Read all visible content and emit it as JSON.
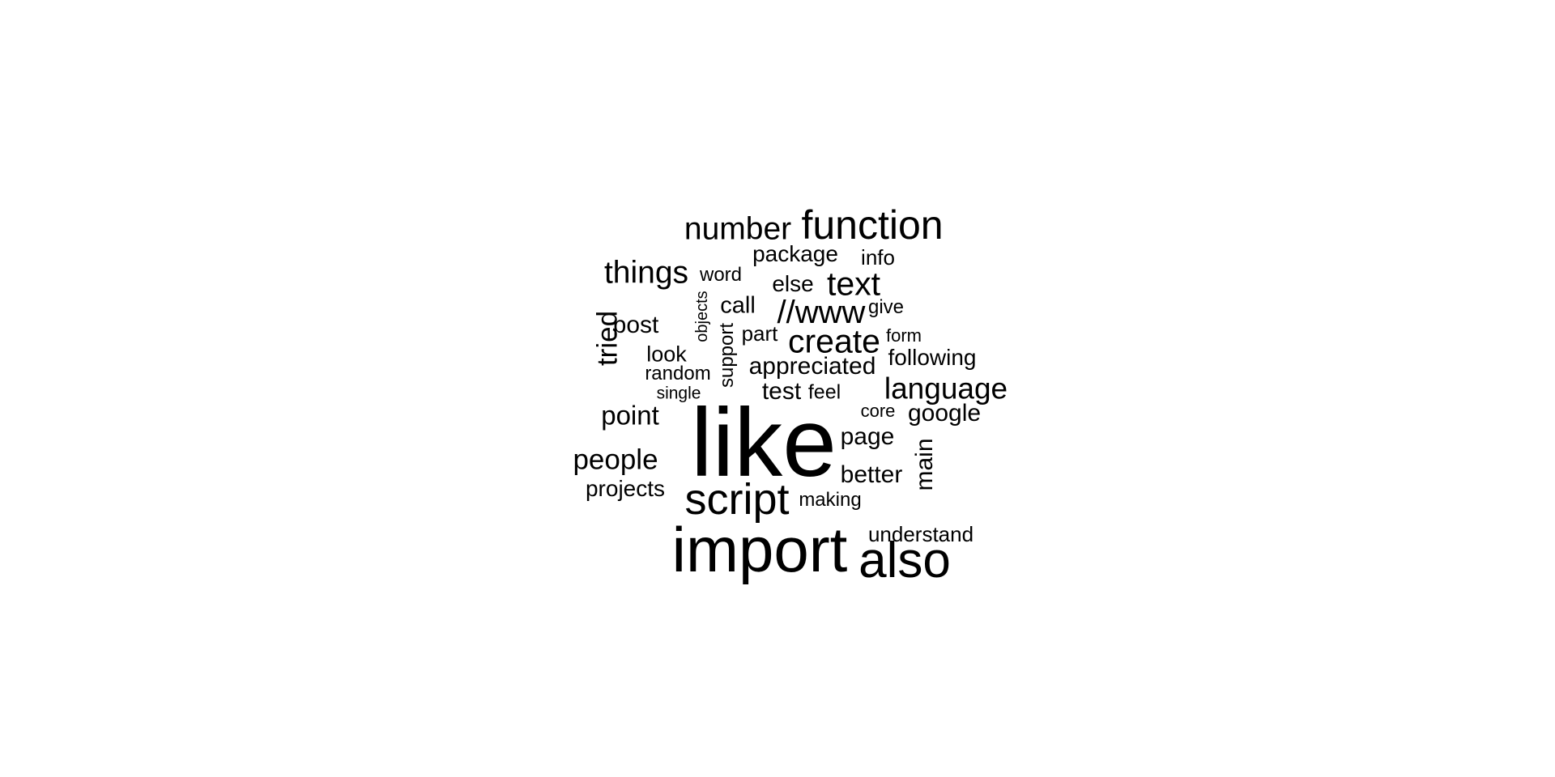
{
  "words": [
    {
      "text": "like",
      "weight": 120
    },
    {
      "text": "import",
      "weight": 78
    },
    {
      "text": "also",
      "weight": 62
    },
    {
      "text": "script",
      "weight": 54
    },
    {
      "text": "function",
      "weight": 50
    },
    {
      "text": "//www",
      "weight": 40
    },
    {
      "text": "create",
      "weight": 41
    },
    {
      "text": "text",
      "weight": 41
    },
    {
      "text": "number",
      "weight": 39
    },
    {
      "text": "things",
      "weight": 39
    },
    {
      "text": "language",
      "weight": 37
    },
    {
      "text": "people",
      "weight": 35
    },
    {
      "text": "tried",
      "weight": 35,
      "vertical": true
    },
    {
      "text": "point",
      "weight": 33
    },
    {
      "text": "page",
      "weight": 30
    },
    {
      "text": "better",
      "weight": 30
    },
    {
      "text": "google",
      "weight": 30
    },
    {
      "text": "post",
      "weight": 30
    },
    {
      "text": "appreciated",
      "weight": 30
    },
    {
      "text": "main",
      "weight": 30,
      "vertical": true
    },
    {
      "text": "test",
      "weight": 30
    },
    {
      "text": "call",
      "weight": 29
    },
    {
      "text": "projects",
      "weight": 28
    },
    {
      "text": "following",
      "weight": 28
    },
    {
      "text": "else",
      "weight": 28
    },
    {
      "text": "package",
      "weight": 28
    },
    {
      "text": "look",
      "weight": 27
    },
    {
      "text": "understand",
      "weight": 26
    },
    {
      "text": "info",
      "weight": 26
    },
    {
      "text": "part",
      "weight": 26
    },
    {
      "text": "feel",
      "weight": 25
    },
    {
      "text": "making",
      "weight": 24
    },
    {
      "text": "give",
      "weight": 24
    },
    {
      "text": "random",
      "weight": 24
    },
    {
      "text": "word",
      "weight": 24
    },
    {
      "text": "support",
      "weight": 24,
      "vertical": true
    },
    {
      "text": "core",
      "weight": 22
    },
    {
      "text": "form",
      "weight": 22
    },
    {
      "text": "single",
      "weight": 21
    },
    {
      "text": "objects",
      "weight": 20,
      "vertical": true
    }
  ]
}
